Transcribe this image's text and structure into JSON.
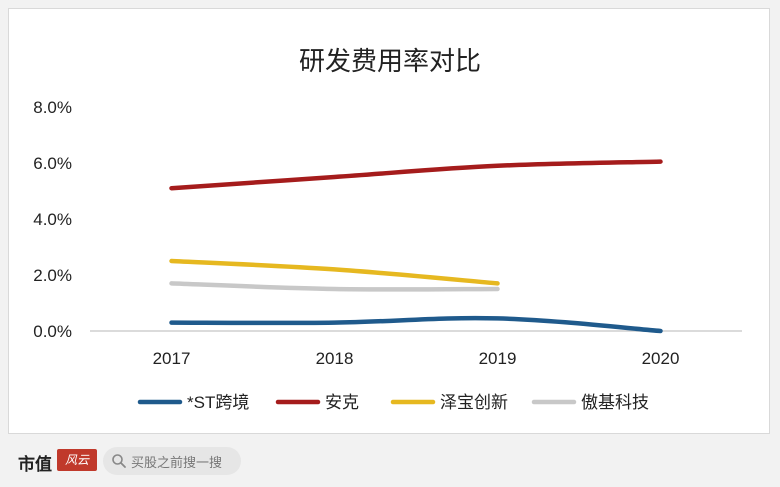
{
  "footer": {
    "brand_text": "市值",
    "brand_logo_text": "风云",
    "search_text": "买股之前搜一搜"
  },
  "chart_data": {
    "type": "line",
    "title": "研发费用率对比",
    "xlabel": "",
    "ylabel": "",
    "categories": [
      "2017",
      "2018",
      "2019",
      "2020"
    ],
    "ylim": [
      0,
      8
    ],
    "yticks": [
      "0.0%",
      "2.0%",
      "4.0%",
      "6.0%",
      "8.0%"
    ],
    "grid": false,
    "legend_position": "bottom",
    "series": [
      {
        "name": "*ST跨境",
        "color": "#1f5a8c",
        "values": [
          0.3,
          0.3,
          0.45,
          0.0
        ]
      },
      {
        "name": "安克",
        "color": "#a51c1c",
        "values": [
          5.1,
          5.5,
          5.9,
          6.05
        ]
      },
      {
        "name": "泽宝创新",
        "color": "#e6b820",
        "values": [
          2.5,
          2.2,
          1.7,
          null
        ]
      },
      {
        "name": "傲基科技",
        "color": "#c8c8c8",
        "values": [
          1.7,
          1.5,
          1.5,
          null
        ]
      }
    ]
  }
}
